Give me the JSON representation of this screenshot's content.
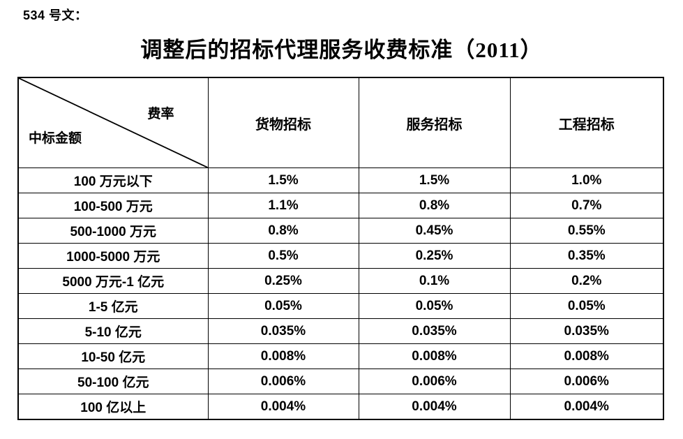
{
  "doc_label": "534 号文：",
  "title": "调整后的招标代理服务收费标准（2011）",
  "table": {
    "corner": {
      "top_right": "费率",
      "bottom_left": "中标金额"
    },
    "columns": [
      "货物招标",
      "服务招标",
      "工程招标"
    ],
    "rows": [
      {
        "label": "100 万元以下",
        "values": [
          "1.5%",
          "1.5%",
          "1.0%"
        ]
      },
      {
        "label": "100-500 万元",
        "values": [
          "1.1%",
          "0.8%",
          "0.7%"
        ]
      },
      {
        "label": "500-1000 万元",
        "values": [
          "0.8%",
          "0.45%",
          "0.55%"
        ]
      },
      {
        "label": "1000-5000 万元",
        "values": [
          "0.5%",
          "0.25%",
          "0.35%"
        ]
      },
      {
        "label": "5000 万元-1 亿元",
        "values": [
          "0.25%",
          "0.1%",
          "0.2%"
        ]
      },
      {
        "label": "1-5 亿元",
        "values": [
          "0.05%",
          "0.05%",
          "0.05%"
        ]
      },
      {
        "label": "5-10 亿元",
        "values": [
          "0.035%",
          "0.035%",
          "0.035%"
        ]
      },
      {
        "label": "10-50 亿元",
        "values": [
          "0.008%",
          "0.008%",
          "0.008%"
        ]
      },
      {
        "label": "50-100 亿元",
        "values": [
          "0.006%",
          "0.006%",
          "0.006%"
        ]
      },
      {
        "label": "100 亿以上",
        "values": [
          "0.004%",
          "0.004%",
          "0.004%"
        ]
      }
    ]
  },
  "colors": {
    "text": "#000000",
    "border": "#000000",
    "background": "#ffffff"
  },
  "chart_data": {
    "type": "table",
    "title": "调整后的招标代理服务收费标准（2011）",
    "corner_axes": {
      "column_axis": "费率",
      "row_axis": "中标金额"
    },
    "columns": [
      "货物招标",
      "服务招标",
      "工程招标"
    ],
    "row_categories": [
      "100 万元以下",
      "100-500 万元",
      "500-1000 万元",
      "1000-5000 万元",
      "5000 万元-1 亿元",
      "1-5 亿元",
      "5-10 亿元",
      "10-50 亿元",
      "50-100 亿元",
      "100 亿以上"
    ],
    "series": [
      {
        "name": "货物招标",
        "values_percent": [
          1.5,
          1.1,
          0.8,
          0.5,
          0.25,
          0.05,
          0.035,
          0.008,
          0.006,
          0.004
        ]
      },
      {
        "name": "服务招标",
        "values_percent": [
          1.5,
          0.8,
          0.45,
          0.25,
          0.1,
          0.05,
          0.035,
          0.008,
          0.006,
          0.004
        ]
      },
      {
        "name": "工程招标",
        "values_percent": [
          1.0,
          0.7,
          0.55,
          0.35,
          0.2,
          0.05,
          0.035,
          0.008,
          0.006,
          0.004
        ]
      }
    ]
  }
}
